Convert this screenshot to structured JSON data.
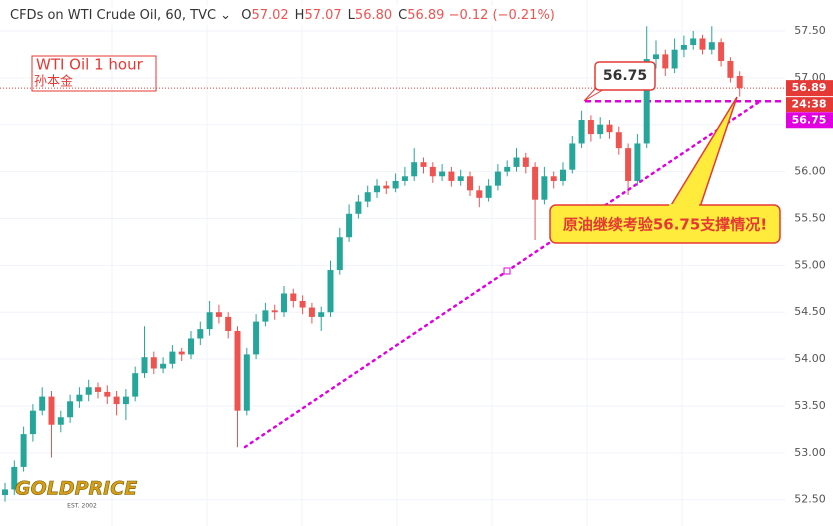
{
  "chart_data": {
    "type": "candlestick",
    "title": "CFDs on WTI Crude Oil, 60, TVC",
    "ohlc_legend": [
      {
        "key": "O",
        "value": "57.02"
      },
      {
        "key": "H",
        "value": "57.07"
      },
      {
        "key": "L",
        "value": "56.80"
      },
      {
        "key": "C",
        "value": "56.89"
      }
    ],
    "change": "−0.12 (−0.21%)",
    "up_color": "#26a69a",
    "down_color": "#ef5350",
    "open": [
      52.55,
      52.61,
      52.85,
      53.2,
      53.45,
      53.6,
      53.3,
      53.38,
      53.55,
      53.62,
      53.7,
      53.65,
      53.6,
      53.52,
      53.6,
      53.85,
      54.02,
      53.9,
      53.95,
      54.08,
      54.05,
      54.22,
      54.32,
      54.5,
      54.45,
      54.3,
      53.45,
      54.05,
      54.4,
      54.52,
      54.5,
      54.7,
      54.62,
      54.55,
      54.45,
      54.5,
      54.95,
      55.3,
      55.55,
      55.68,
      55.78,
      55.85,
      55.82,
      55.9,
      55.95,
      56.1,
      56.05,
      55.95,
      56.0,
      55.9,
      55.95,
      55.8,
      55.72,
      55.85,
      56.0,
      56.05,
      56.15,
      56.05,
      55.7,
      55.95,
      55.9,
      56.02,
      56.3,
      56.55,
      56.4,
      56.5,
      56.42,
      56.25,
      55.9,
      56.3,
      57.2,
      57.25,
      57.1,
      57.3,
      57.35,
      57.42,
      57.3,
      57.38,
      57.18,
      57.02
    ],
    "high": [
      52.68,
      52.92,
      53.28,
      53.52,
      53.7,
      53.66,
      53.45,
      53.62,
      53.7,
      53.78,
      53.75,
      53.72,
      53.66,
      53.68,
      53.92,
      54.35,
      54.08,
      54.02,
      54.15,
      54.12,
      54.3,
      54.4,
      54.62,
      54.58,
      54.5,
      54.35,
      54.12,
      54.48,
      54.6,
      54.58,
      54.78,
      54.75,
      54.68,
      54.6,
      54.56,
      55.05,
      55.4,
      55.65,
      55.75,
      55.85,
      55.92,
      55.9,
      55.98,
      56.05,
      56.25,
      56.15,
      56.1,
      56.08,
      56.05,
      56.02,
      56.0,
      55.85,
      55.92,
      56.08,
      56.12,
      56.25,
      56.2,
      56.1,
      56.05,
      56.0,
      56.1,
      56.38,
      56.65,
      56.6,
      56.58,
      56.55,
      56.48,
      56.3,
      56.4,
      57.55,
      57.4,
      57.3,
      57.42,
      57.45,
      57.5,
      57.46,
      57.55,
      57.42,
      57.22,
      57.07
    ],
    "low": [
      52.48,
      52.55,
      52.8,
      53.12,
      53.4,
      52.95,
      53.22,
      53.32,
      53.48,
      53.55,
      53.58,
      53.52,
      53.4,
      53.35,
      53.55,
      53.8,
      53.84,
      53.85,
      53.9,
      53.98,
      54.0,
      54.15,
      54.25,
      54.38,
      54.22,
      53.06,
      53.4,
      54.0,
      54.35,
      54.42,
      54.45,
      54.55,
      54.48,
      54.38,
      54.3,
      54.45,
      54.9,
      55.25,
      55.5,
      55.62,
      55.72,
      55.76,
      55.78,
      55.85,
      55.9,
      55.98,
      55.88,
      55.9,
      55.84,
      55.85,
      55.74,
      55.62,
      55.68,
      55.8,
      55.95,
      56.0,
      55.98,
      55.27,
      55.65,
      55.82,
      55.85,
      55.98,
      56.25,
      56.32,
      56.35,
      56.35,
      56.18,
      55.75,
      55.85,
      56.25,
      57.1,
      57.02,
      57.05,
      57.22,
      57.3,
      57.25,
      57.25,
      57.12,
      56.95,
      56.8
    ],
    "close": [
      52.61,
      52.85,
      53.2,
      53.45,
      53.6,
      53.3,
      53.38,
      53.55,
      53.62,
      53.7,
      53.65,
      53.6,
      53.52,
      53.6,
      53.85,
      54.02,
      53.9,
      53.95,
      54.08,
      54.05,
      54.22,
      54.32,
      54.5,
      54.45,
      54.3,
      53.45,
      54.05,
      54.4,
      54.52,
      54.5,
      54.7,
      54.62,
      54.55,
      54.45,
      54.5,
      54.95,
      55.3,
      55.55,
      55.68,
      55.78,
      55.85,
      55.82,
      55.9,
      55.95,
      56.1,
      56.05,
      55.95,
      56.0,
      55.9,
      55.95,
      55.8,
      55.72,
      55.85,
      56.0,
      56.05,
      56.15,
      56.05,
      55.7,
      55.95,
      55.9,
      56.02,
      56.3,
      56.55,
      56.4,
      56.5,
      56.42,
      56.25,
      55.9,
      56.3,
      57.2,
      57.25,
      57.1,
      57.3,
      57.35,
      57.42,
      57.3,
      57.38,
      57.18,
      57.0,
      56.89
    ],
    "ylim": [
      52.22,
      57.83
    ],
    "yticks": [
      {
        "value": 52.5,
        "label": "52.50"
      },
      {
        "value": 53,
        "label": "53.00"
      },
      {
        "value": 53.5,
        "label": "53.50"
      },
      {
        "value": 54,
        "label": "54.00"
      },
      {
        "value": 54.5,
        "label": "54.50"
      },
      {
        "value": 55,
        "label": "55.00"
      },
      {
        "value": 55.5,
        "label": "55.50"
      },
      {
        "value": 56,
        "label": "56.00"
      },
      {
        "value": 56.5,
        "label": "56.50"
      },
      {
        "value": 57,
        "label": "57.00"
      },
      {
        "value": 57.5,
        "label": "57.50"
      }
    ],
    "grid": true,
    "hlines": [
      {
        "value": 56.89,
        "color": "#e53935"
      },
      {
        "value": 56.75,
        "color": "#e000e0"
      }
    ],
    "countdown": "24:38",
    "annotations": {
      "label": "WTI Oil 1 hour",
      "author": "孙本金",
      "callout": "原油继续考验56.75支撑情况!"
    },
    "logo": {
      "name": "GOLDPRICE",
      "est": "EST. 2002"
    }
  }
}
